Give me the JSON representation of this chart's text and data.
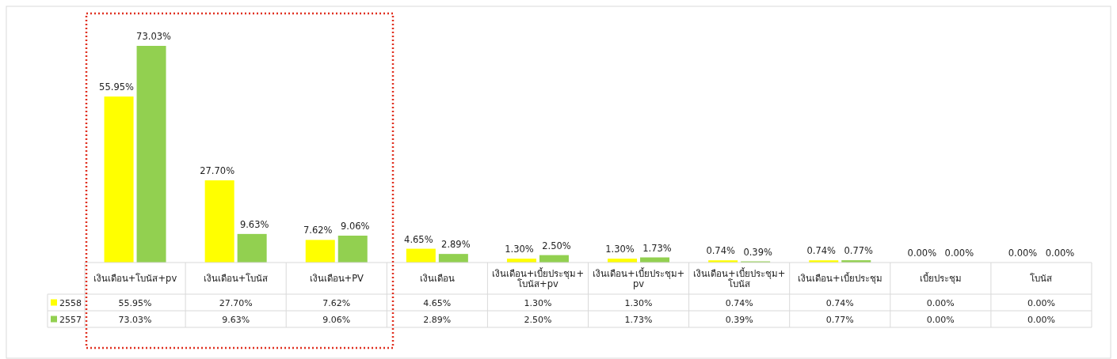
{
  "chart_data": {
    "type": "bar",
    "categories": [
      "เงินเดือน+โบนัส+pv",
      "เงินเดือน+โบนัส",
      "เงินเดือน+PV",
      "เงินเดือน",
      "เงินเดือน+เบี้ยประชุม+โบนัส+pv",
      "เงินเดือน+เบี้ยประชุม+pv",
      "เงินเดือน+เบี้ยประชุม+โบนัส",
      "เงินเดือน+เบี้ยประชุม",
      "เบี้ยประชุม",
      "โบนัส"
    ],
    "series": [
      {
        "name": "2558",
        "color": "#ffff00",
        "values": [
          55.95,
          27.7,
          7.62,
          4.65,
          1.3,
          1.3,
          0.74,
          0.74,
          0,
          0
        ],
        "value_labels": [
          "55.95%",
          "27.70%",
          "7.62%",
          "4.65%",
          "1.30%",
          "1.30%",
          "0.74%",
          "0.74%",
          "0.00%",
          "0.00%"
        ]
      },
      {
        "name": "2557",
        "color": "#92d050",
        "values": [
          73.03,
          9.63,
          9.06,
          2.89,
          2.5,
          1.73,
          0.39,
          0.77,
          0,
          0
        ],
        "value_labels": [
          "73.03%",
          "9.63%",
          "9.06%",
          "2.89%",
          "2.50%",
          "1.73%",
          "0.39%",
          "0.77%",
          "0.00%",
          "0.00%"
        ]
      }
    ],
    "legend": "bottom"
  }
}
